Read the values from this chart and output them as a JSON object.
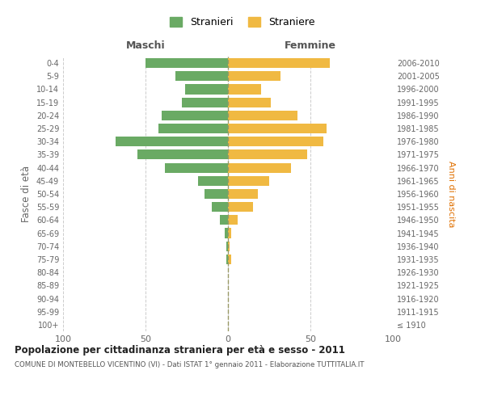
{
  "age_groups": [
    "100+",
    "95-99",
    "90-94",
    "85-89",
    "80-84",
    "75-79",
    "70-74",
    "65-69",
    "60-64",
    "55-59",
    "50-54",
    "45-49",
    "40-44",
    "35-39",
    "30-34",
    "25-29",
    "20-24",
    "15-19",
    "10-14",
    "5-9",
    "0-4"
  ],
  "birth_years": [
    "≤ 1910",
    "1911-1915",
    "1916-1920",
    "1921-1925",
    "1926-1930",
    "1931-1935",
    "1936-1940",
    "1941-1945",
    "1946-1950",
    "1951-1955",
    "1956-1960",
    "1961-1965",
    "1966-1970",
    "1971-1975",
    "1976-1980",
    "1981-1985",
    "1986-1990",
    "1991-1995",
    "1996-2000",
    "2001-2005",
    "2006-2010"
  ],
  "maschi": [
    0,
    0,
    0,
    0,
    0,
    1,
    1,
    2,
    5,
    10,
    14,
    18,
    38,
    55,
    68,
    42,
    40,
    28,
    26,
    32,
    50
  ],
  "femmine": [
    0,
    0,
    0,
    0,
    0,
    2,
    1,
    2,
    6,
    15,
    18,
    25,
    38,
    48,
    58,
    60,
    42,
    26,
    20,
    32,
    62
  ],
  "male_color": "#6aaa64",
  "female_color": "#f0b942",
  "title": "Popolazione per cittadinanza straniera per età e sesso - 2011",
  "subtitle": "COMUNE DI MONTEBELLO VICENTINO (VI) - Dati ISTAT 1° gennaio 2011 - Elaborazione TUTTITALIA.IT",
  "xlabel_left": "Maschi",
  "xlabel_right": "Femmine",
  "ylabel_left": "Fasce di età",
  "ylabel_right": "Anni di nascita",
  "legend_male": "Stranieri",
  "legend_female": "Straniere",
  "xlim": 100,
  "background_color": "#ffffff",
  "grid_color": "#cccccc"
}
